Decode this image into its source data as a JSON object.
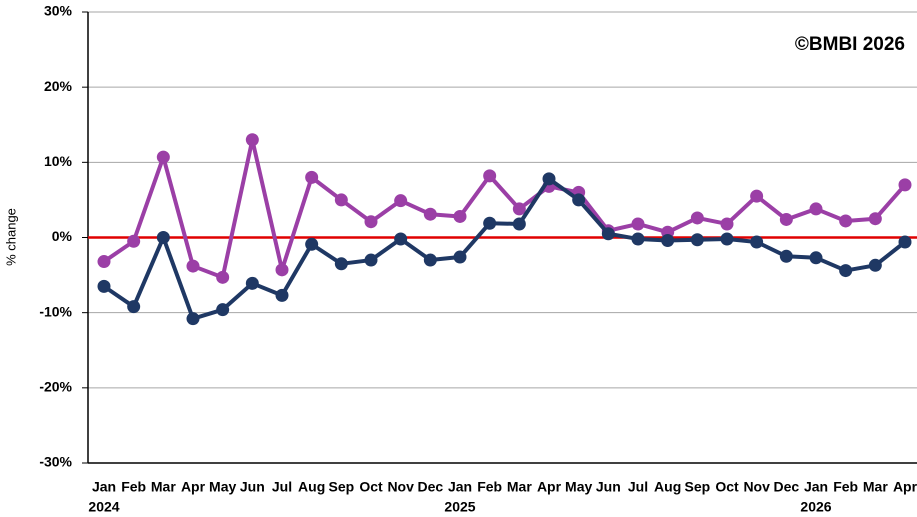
{
  "chart_data": {
    "type": "line",
    "y_label": "% change",
    "annotation": "©BMBI 2026",
    "categories": [
      "Jan",
      "Feb",
      "Mar",
      "Apr",
      "May",
      "Jun",
      "Jul",
      "Aug",
      "Sep",
      "Oct",
      "Nov",
      "Dec",
      "Jan",
      "Feb",
      "Mar",
      "Apr",
      "May",
      "Jun",
      "Jul",
      "Aug",
      "Sep",
      "Oct",
      "Nov",
      "Dec",
      "Jan",
      "Feb",
      "Mar",
      "Apr"
    ],
    "year_labels": [
      "2024",
      null,
      null,
      null,
      null,
      null,
      null,
      null,
      null,
      null,
      null,
      null,
      "2025",
      null,
      null,
      null,
      null,
      null,
      null,
      null,
      null,
      null,
      null,
      null,
      "2026",
      null,
      null,
      null
    ],
    "series": [
      {
        "color": "#9b3fa6",
        "values": [
          -3.2,
          -0.5,
          10.7,
          -3.8,
          -5.3,
          13,
          -4.3,
          8,
          5,
          2.1,
          4.9,
          3.1,
          2.8,
          8.2,
          3.8,
          6.8,
          6,
          0.9,
          1.8,
          0.7,
          2.6,
          1.8,
          5.5,
          2.4,
          3.8,
          2.2,
          2.5,
          7
        ]
      },
      {
        "color": "#1f3864",
        "values": [
          -6.5,
          -9.2,
          0,
          -10.8,
          -9.6,
          -6.1,
          -7.7,
          -0.9,
          -3.5,
          -3,
          -0.2,
          -3,
          -2.6,
          1.9,
          1.8,
          7.8,
          5,
          0.5,
          -0.2,
          -0.4,
          -0.3,
          -0.2,
          -0.6,
          -2.5,
          -2.7,
          -4.4,
          -3.7,
          -0.6
        ]
      }
    ],
    "ylim": [
      -30,
      30
    ],
    "yticks": [
      {
        "value": -30,
        "label": "-30%"
      },
      {
        "value": -20,
        "label": "-20%"
      },
      {
        "value": -10,
        "label": "-10%"
      },
      {
        "value": 0,
        "label": "0%"
      },
      {
        "value": 10,
        "label": "10%"
      },
      {
        "value": 20,
        "label": "20%"
      },
      {
        "value": 30,
        "label": "30%"
      }
    ],
    "grid": true,
    "zero_line_color": "#e00000"
  }
}
